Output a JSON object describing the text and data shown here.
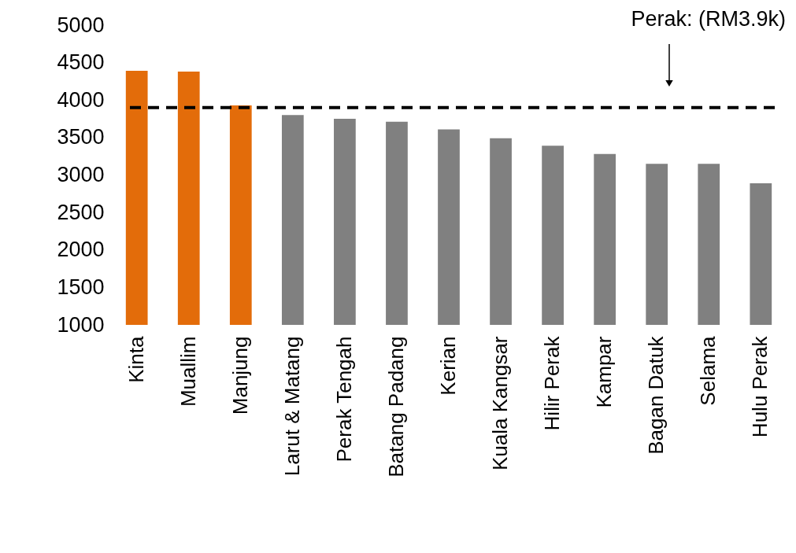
{
  "chart_data": {
    "type": "bar",
    "categories": [
      "Kinta",
      "Muallim",
      "Manjung",
      "Larut & Matang",
      "Perak Tengah",
      "Batang Padang",
      "Kerian",
      "Kuala Kangsar",
      "Hilir Perak",
      "Kampar",
      "Bagan Datuk",
      "Selama",
      "Hulu Perak"
    ],
    "values": [
      4390,
      4380,
      3930,
      3800,
      3750,
      3710,
      3610,
      3490,
      3390,
      3280,
      3150,
      3150,
      2890
    ],
    "colors": [
      "#e36c0a",
      "#e36c0a",
      "#e36c0a",
      "#808080",
      "#808080",
      "#808080",
      "#808080",
      "#808080",
      "#808080",
      "#808080",
      "#808080",
      "#808080",
      "#808080"
    ],
    "ylim": [
      1000,
      5000
    ],
    "yticks": [
      1000,
      1500,
      2000,
      2500,
      3000,
      3500,
      4000,
      4500,
      5000
    ],
    "grid": false,
    "ref_lines": [
      {
        "axis": "y",
        "value": 3900,
        "label": "Perak: (RM3.9k)",
        "color": "#000000",
        "line_style": "dashed"
      }
    ]
  }
}
